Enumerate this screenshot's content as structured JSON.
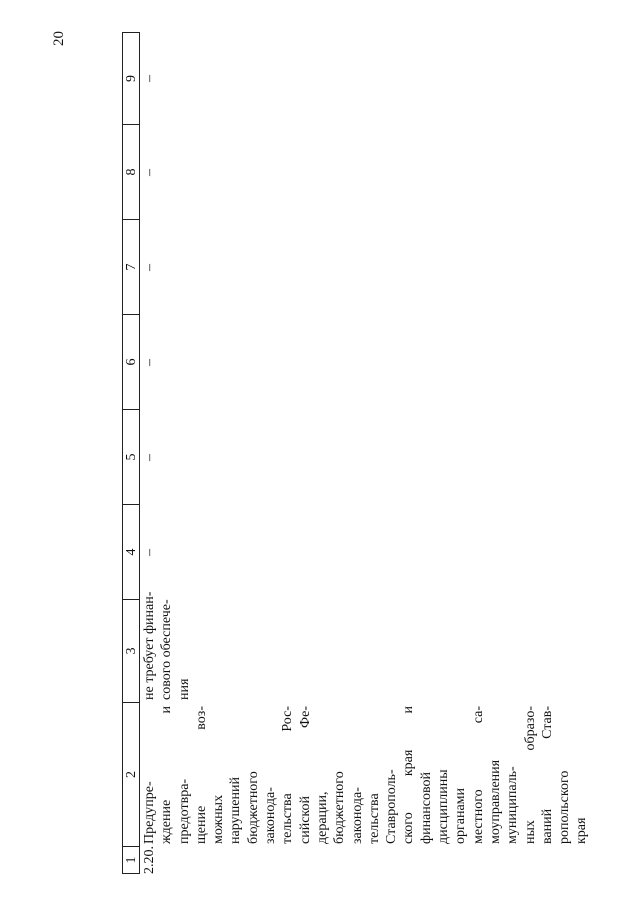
{
  "page_number": "20",
  "table": {
    "header": [
      "1",
      "2",
      "3",
      "4",
      "5",
      "6",
      "7",
      "8",
      "9"
    ],
    "rows": [
      {
        "number": "2.20.",
        "name_lines": [
          "Предупре-",
          "ждение и",
          "предотвра-",
          "щение воз-",
          "можных",
          "нарушений",
          "бюджетного",
          "законода-",
          "тельства Рос-",
          "сийской Фе-",
          "дерации,",
          "бюджетного",
          "законода-",
          "тельства",
          "Ставрополь-",
          "ского края и",
          "финансовой",
          "дисциплины",
          "органами",
          "местного са-",
          "моуправления",
          "муниципаль-",
          "ных образо-",
          "ваний Став-",
          "ропольского",
          "края"
        ],
        "funding_lines": [
          "не требует финан-",
          "сового обеспече-",
          "ния"
        ],
        "values": [
          "–",
          "–",
          "–",
          "–",
          "–",
          "–"
        ]
      }
    ]
  }
}
